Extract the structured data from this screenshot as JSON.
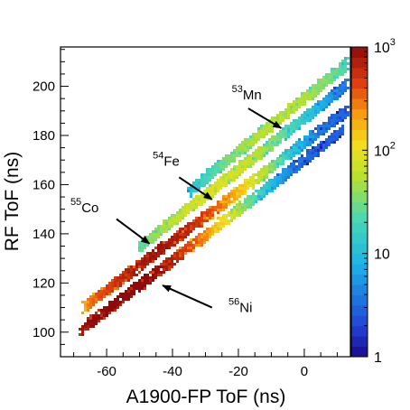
{
  "chart_data": {
    "type": "heatmap",
    "xlabel": "A1900-FP ToF (ns)",
    "ylabel": "RF ToF (ns)",
    "xlim": [
      -74,
      14
    ],
    "ylim": [
      90,
      216
    ],
    "x_ticks": [
      -60,
      -40,
      -20,
      0
    ],
    "y_ticks": [
      100,
      120,
      140,
      160,
      180,
      200
    ],
    "z_scale": "log",
    "zlim": [
      1,
      1000
    ],
    "colorbar_ticks": [
      {
        "value": 1,
        "base": "1",
        "exp": ""
      },
      {
        "value": 10,
        "base": "10",
        "exp": ""
      },
      {
        "value": 100,
        "base": "10",
        "exp": "2"
      },
      {
        "value": 1000,
        "base": "10",
        "exp": "3"
      }
    ],
    "colorbar_placement": "right",
    "grid": false,
    "bands": [
      {
        "name": "56Ni",
        "x_start": -68,
        "x_end": 12,
        "slope": 1.02,
        "intercept": 170.0,
        "peak_x": -55,
        "peak_counts": 900
      },
      {
        "name": "55Co",
        "x_start": -67,
        "x_end": 13,
        "slope": 1.0,
        "intercept": 177.0,
        "peak_x": -45,
        "peak_counts": 600
      },
      {
        "name": "54Fe",
        "x_start": -50,
        "x_end": 13,
        "slope": 1.05,
        "intercept": 187.0,
        "peak_x": -28,
        "peak_counts": 60
      },
      {
        "name": "53Mn",
        "x_start": -35,
        "x_end": 13,
        "slope": 1.08,
        "intercept": 195.0,
        "peak_x": -8,
        "peak_counts": 40
      }
    ],
    "annotations": [
      {
        "mass": "53",
        "element": "Mn",
        "label_x": -22,
        "label_y": 195.5,
        "arrow_from": [
          -17,
          191
        ],
        "arrow_to": [
          -7,
          183
        ]
      },
      {
        "mass": "54",
        "element": "Fe",
        "label_x": -46,
        "label_y": 168.5,
        "arrow_from": [
          -38,
          163
        ],
        "arrow_to": [
          -28,
          154
        ]
      },
      {
        "mass": "55",
        "element": "Co",
        "label_x": -71,
        "label_y": 149.5,
        "arrow_from": [
          -57,
          146
        ],
        "arrow_to": [
          -47,
          136
        ]
      },
      {
        "mass": "56",
        "element": "Ni",
        "label_x": -23,
        "label_y": 109,
        "arrow_from": [
          -28,
          110
        ],
        "arrow_to": [
          -43,
          119
        ]
      }
    ]
  }
}
